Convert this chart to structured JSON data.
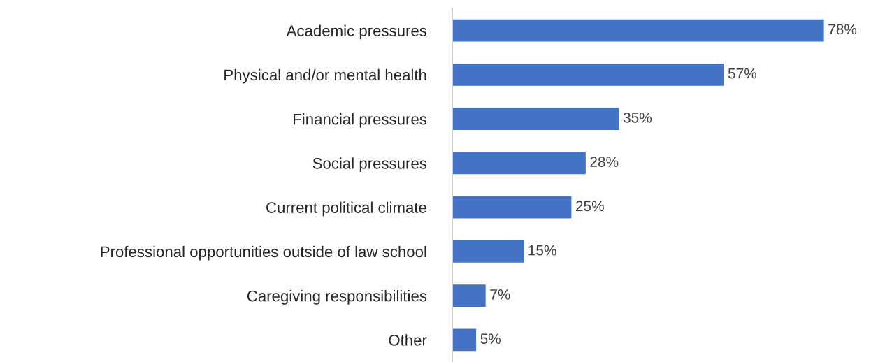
{
  "chart_data": {
    "type": "bar",
    "orientation": "horizontal",
    "categories": [
      "Academic pressures",
      "Physical and/or mental health",
      "Financial pressures",
      "Social pressures",
      "Current political climate",
      "Professional opportunities outside of law school",
      "Caregiving responsibilities",
      "Other"
    ],
    "values": [
      78,
      57,
      35,
      28,
      25,
      15,
      7,
      5
    ],
    "value_labels": [
      "78%",
      "57%",
      "35%",
      "28%",
      "25%",
      "15%",
      "7%",
      "5%"
    ],
    "color": "#4472c4",
    "grid": false,
    "legend": false,
    "tick_labels": "y"
  }
}
